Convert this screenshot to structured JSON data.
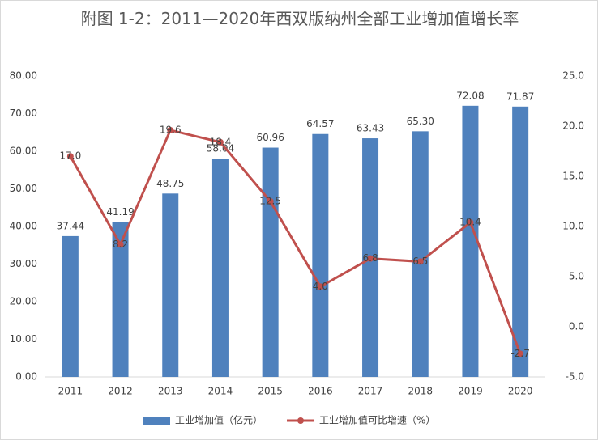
{
  "chart_data": {
    "type": "bar",
    "title": "附图 1-2：2011—2020年西双版纳州全部工业增加值增长率",
    "categories": [
      "2011",
      "2012",
      "2013",
      "2014",
      "2015",
      "2016",
      "2017",
      "2018",
      "2019",
      "2020"
    ],
    "series": [
      {
        "name": "工业增加值（亿元）",
        "type": "bar",
        "color": "#4f81bd",
        "values": [
          37.44,
          41.19,
          48.75,
          58.04,
          60.96,
          64.57,
          63.43,
          65.3,
          72.08,
          71.87
        ],
        "value_labels": [
          "37.44",
          "41.19",
          "48.75",
          "58.04",
          "60.96",
          "64.57",
          "63.43",
          "65.30",
          "72.08",
          "71.87"
        ]
      },
      {
        "name": "工业增加值可比增速（%）",
        "type": "line",
        "axis": "y2",
        "color": "#c0504d",
        "values": [
          17.0,
          8.2,
          19.6,
          18.4,
          12.5,
          4.0,
          6.8,
          6.5,
          10.4,
          -2.7
        ],
        "value_labels": [
          "17.0",
          "8.2",
          "19.6",
          "18.4",
          "12.5",
          "4.0",
          "6.8",
          "6.5",
          "10.4",
          "-2.7"
        ]
      }
    ],
    "ylim": [
      0,
      80
    ],
    "yticks": [
      {
        "value": 0,
        "label": "0.00"
      },
      {
        "value": 10,
        "label": "10.00"
      },
      {
        "value": 20,
        "label": "20.00"
      },
      {
        "value": 30,
        "label": "30.00"
      },
      {
        "value": 40,
        "label": "40.00"
      },
      {
        "value": 50,
        "label": "50.00"
      },
      {
        "value": 60,
        "label": "60.00"
      },
      {
        "value": 70,
        "label": "70.00"
      },
      {
        "value": 80,
        "label": "80.00"
      }
    ],
    "y2lim": [
      -5,
      25
    ],
    "y2ticks": [
      {
        "value": -5,
        "label": "-5.0"
      },
      {
        "value": 0,
        "label": "0.0"
      },
      {
        "value": 5,
        "label": "5.0"
      },
      {
        "value": 10,
        "label": "10.0"
      },
      {
        "value": 15,
        "label": "15.0"
      },
      {
        "value": 20,
        "label": "20.0"
      },
      {
        "value": 25,
        "label": "25.0"
      }
    ],
    "grid": false,
    "legend": "bottom"
  }
}
